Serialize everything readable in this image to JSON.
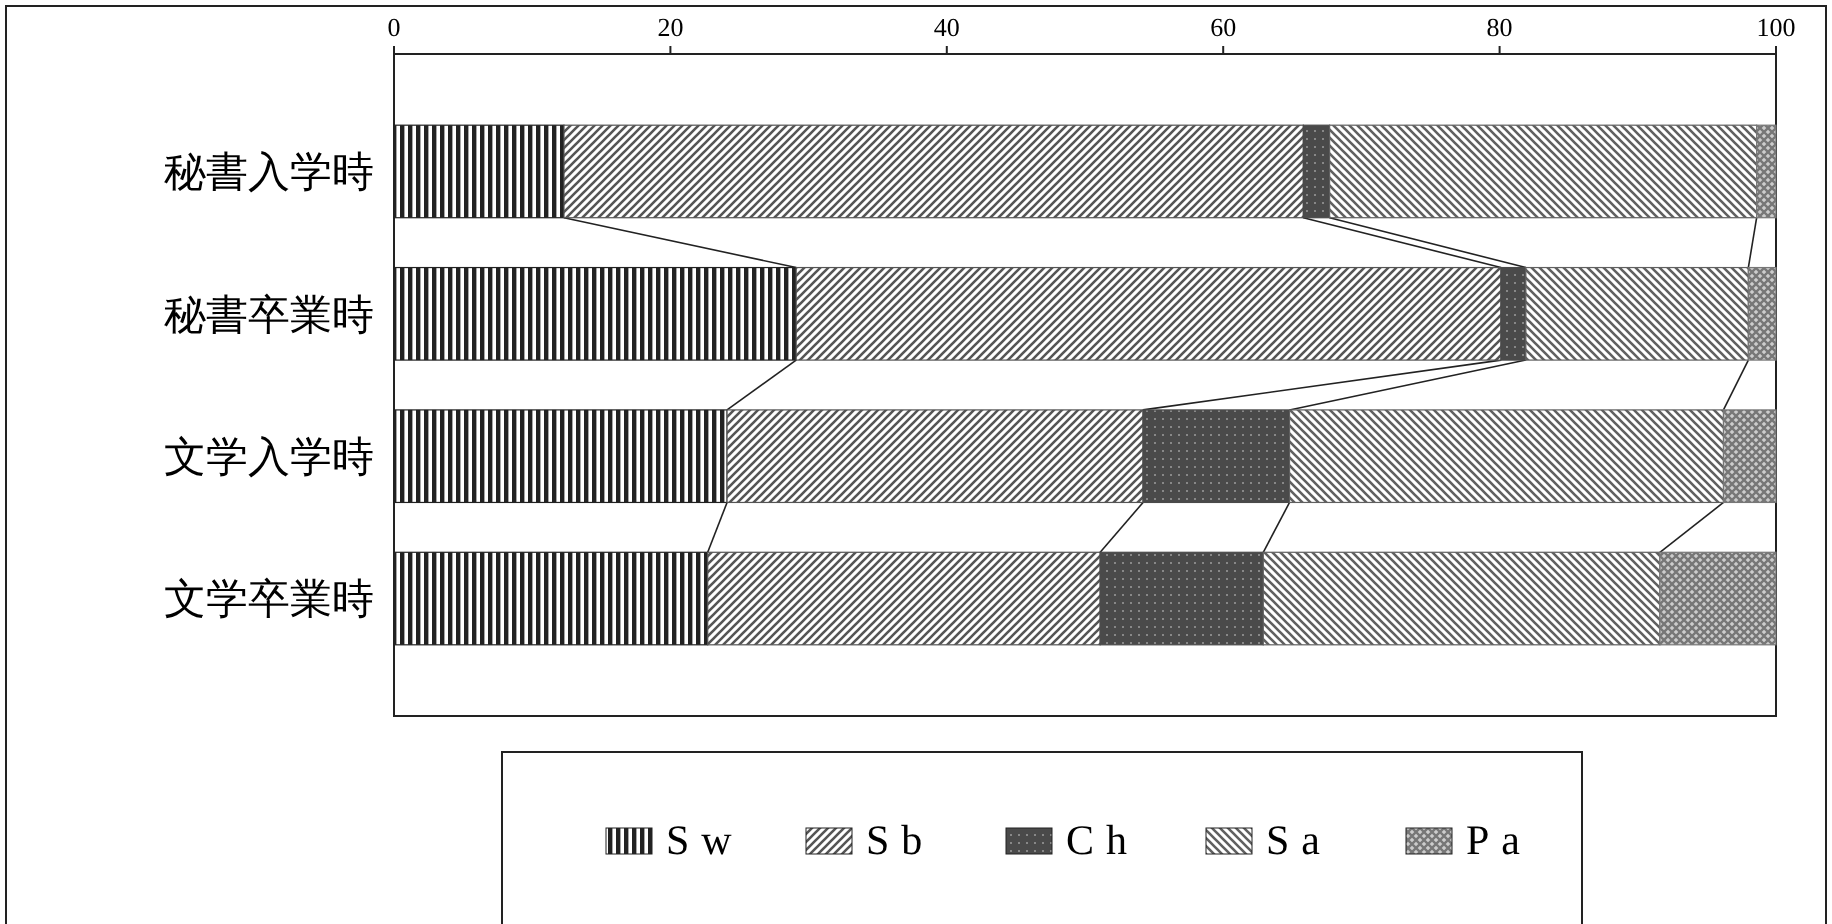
{
  "chart_data": {
    "type": "bar",
    "orientation": "horizontal",
    "stacked": true,
    "categories": [
      "秘書入学時",
      "秘書卒業時",
      "文学入学時",
      "文学卒業時"
    ],
    "series": [
      {
        "name": "Sw",
        "color": "#222222",
        "values": [
          12.3,
          29.1,
          24.1,
          22.7
        ]
      },
      {
        "name": "Sb",
        "color": "#555555",
        "values": [
          53.5,
          51.0,
          30.1,
          28.4
        ]
      },
      {
        "name": "Ch",
        "color": "#4a4a4a",
        "values": [
          1.9,
          1.8,
          10.6,
          11.8
        ]
      },
      {
        "name": "Sa",
        "color": "#606060",
        "values": [
          30.9,
          16.1,
          31.4,
          28.7
        ]
      },
      {
        "name": "Pa",
        "color": "#777777",
        "values": [
          1.4,
          2.0,
          3.8,
          8.4
        ]
      }
    ],
    "xlim": [
      0,
      100
    ],
    "xticks": [
      0,
      20,
      40,
      60,
      80,
      100
    ],
    "legend": "bottom",
    "grid": false
  }
}
